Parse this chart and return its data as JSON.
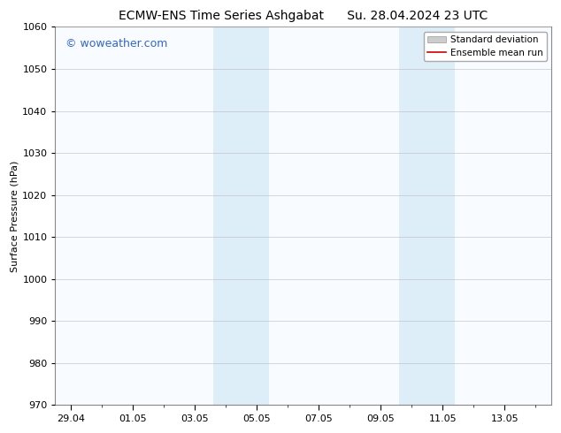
{
  "title_left": "ECMW-ENS Time Series Ashgabat",
  "title_right": "Su. 28.04.2024 23 UTC",
  "ylabel": "Surface Pressure (hPa)",
  "ylim": [
    970,
    1060
  ],
  "yticks": [
    970,
    980,
    990,
    1000,
    1010,
    1020,
    1030,
    1040,
    1050,
    1060
  ],
  "xlim_start": -0.5,
  "xlim_end": 15.5,
  "xtick_positions": [
    0,
    2,
    4,
    6,
    8,
    10,
    12,
    14
  ],
  "xtick_labels": [
    "29.04",
    "01.05",
    "03.05",
    "05.05",
    "07.05",
    "09.05",
    "11.05",
    "13.05"
  ],
  "shaded_bands": [
    {
      "x_start": 4.6,
      "x_end": 6.4
    },
    {
      "x_start": 10.6,
      "x_end": 12.4
    }
  ],
  "shaded_color": "#ddeef8",
  "watermark_text": "© woweather.com",
  "watermark_color": "#3366cc",
  "legend_std_label": "Standard deviation",
  "legend_mean_label": "Ensemble mean run",
  "legend_std_color": "#cccccc",
  "legend_mean_color": "#cc0000",
  "background_color": "#ffffff",
  "plot_bg_color": "#f8fbff",
  "grid_color": "#bbbbbb",
  "spine_color": "#888888",
  "title_fontsize": 10,
  "axis_label_fontsize": 8,
  "tick_fontsize": 8,
  "legend_fontsize": 7.5,
  "watermark_fontsize": 9
}
